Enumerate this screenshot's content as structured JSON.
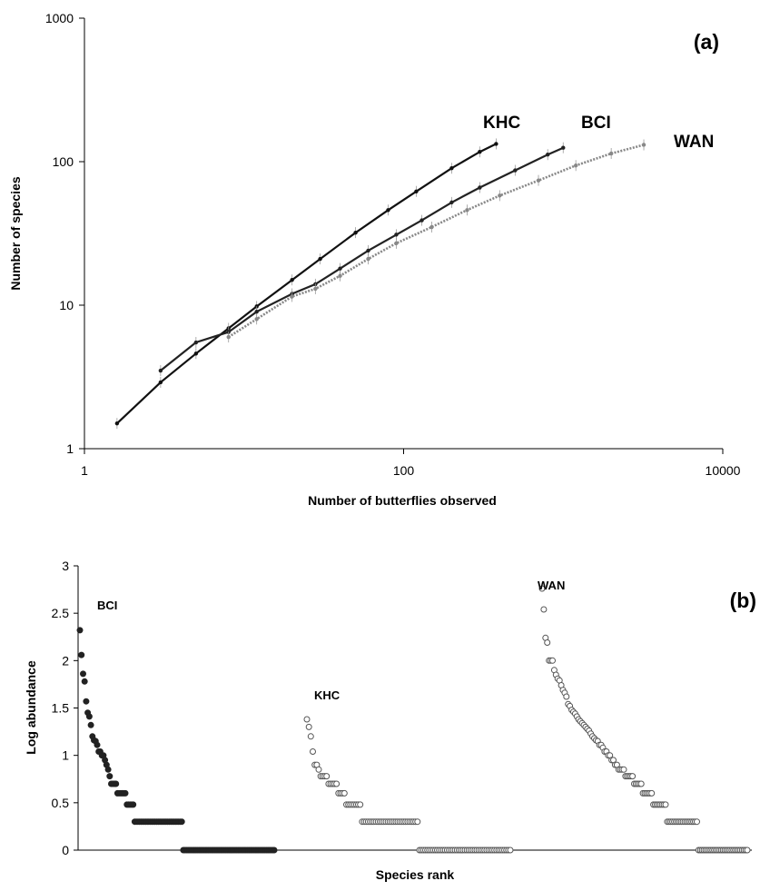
{
  "chart_data": [
    {
      "type": "line",
      "panel_label": "(a)",
      "xlabel": "Number of butterflies observed",
      "ylabel": "Number of species",
      "xscale": "log",
      "yscale": "log",
      "xlim": [
        1,
        10000
      ],
      "ylim": [
        1,
        1000
      ],
      "x_ticks": [
        "1",
        "100",
        "10000"
      ],
      "y_ticks": [
        "1",
        "10",
        "100",
        "1000"
      ],
      "grid": false,
      "series": [
        {
          "name": "KHC",
          "color": "#111111",
          "x": [
            1.6,
            3,
            5,
            8,
            12,
            20,
            30,
            50,
            80,
            120,
            200,
            300,
            380
          ],
          "y": [
            1.5,
            2.9,
            4.6,
            6.9,
            9.8,
            15,
            21,
            32,
            46,
            62,
            90,
            117,
            133
          ]
        },
        {
          "name": "BCI",
          "color": "#222222",
          "x": [
            3,
            5,
            8,
            12,
            20,
            28,
            40,
            60,
            90,
            130,
            200,
            300,
            500,
            800,
            1000
          ],
          "y": [
            3.5,
            5.5,
            6.5,
            9,
            12,
            14,
            18,
            24,
            31,
            39,
            52,
            66,
            87,
            112,
            125
          ]
        },
        {
          "name": "WAN",
          "color": "#888888",
          "x": [
            8,
            12,
            20,
            28,
            40,
            60,
            90,
            150,
            250,
            400,
            700,
            1200,
            2000,
            3200
          ],
          "y": [
            6,
            8,
            11.5,
            13,
            16,
            21,
            27,
            35,
            46,
            58,
            74,
            94,
            114,
            131
          ]
        }
      ],
      "series_labels": [
        "KHC",
        "BCI",
        "WAN"
      ]
    },
    {
      "type": "scatter",
      "panel_label": "(b)",
      "xlabel": "Species rank",
      "ylabel": "Log abundance",
      "ylim": [
        0,
        3
      ],
      "y_ticks": [
        "0",
        "0.5",
        "1",
        "1.5",
        "2",
        "2.5",
        "3"
      ],
      "grid": false,
      "series": [
        {
          "name": "BCI",
          "marker": "filled",
          "values": [
            2.32,
            2.06,
            1.86,
            1.78,
            1.57,
            1.45,
            1.41,
            1.32,
            1.2,
            1.16,
            1.15,
            1.11,
            1.04,
            1.04,
            1.0,
            1.0,
            0.95,
            0.9,
            0.85,
            0.78,
            0.7,
            0.7,
            0.7,
            0.7,
            0.6,
            0.6,
            0.6,
            0.6,
            0.6,
            0.6,
            0.48,
            0.48,
            0.48,
            0.48,
            0.48,
            0.3,
            0.3,
            0.3,
            0.3,
            0.3,
            0.3,
            0.3,
            0.3,
            0.3,
            0.3,
            0.3,
            0.3,
            0.3,
            0.3,
            0.3,
            0.3,
            0.3,
            0.3,
            0.3,
            0.3,
            0.3,
            0.3,
            0.3,
            0.3,
            0.3,
            0.3,
            0.3,
            0.3,
            0.3,
            0.3,
            0.3,
            0,
            0,
            0,
            0,
            0,
            0,
            0,
            0,
            0,
            0,
            0,
            0,
            0,
            0,
            0,
            0,
            0,
            0,
            0,
            0,
            0,
            0,
            0,
            0,
            0,
            0,
            0,
            0,
            0,
            0,
            0,
            0,
            0,
            0,
            0,
            0,
            0,
            0,
            0,
            0,
            0,
            0,
            0,
            0,
            0,
            0,
            0,
            0,
            0,
            0,
            0,
            0,
            0,
            0,
            0,
            0,
            0,
            0,
            0
          ]
        },
        {
          "name": "KHC",
          "marker": "open",
          "values": [
            1.38,
            1.3,
            1.2,
            1.04,
            0.9,
            0.9,
            0.85,
            0.78,
            0.78,
            0.78,
            0.78,
            0.7,
            0.7,
            0.7,
            0.7,
            0.7,
            0.6,
            0.6,
            0.6,
            0.6,
            0.48,
            0.48,
            0.48,
            0.48,
            0.48,
            0.48,
            0.48,
            0.48,
            0.3,
            0.3,
            0.3,
            0.3,
            0.3,
            0.3,
            0.3,
            0.3,
            0.3,
            0.3,
            0.3,
            0.3,
            0.3,
            0.3,
            0.3,
            0.3,
            0.3,
            0.3,
            0.3,
            0.3,
            0.3,
            0.3,
            0.3,
            0.3,
            0.3,
            0.3,
            0.3,
            0.3,
            0.3,
            0,
            0,
            0,
            0,
            0,
            0,
            0,
            0,
            0,
            0,
            0,
            0,
            0,
            0,
            0,
            0,
            0,
            0,
            0,
            0,
            0,
            0,
            0,
            0,
            0,
            0,
            0,
            0,
            0,
            0,
            0,
            0,
            0,
            0,
            0,
            0,
            0,
            0,
            0,
            0,
            0,
            0,
            0,
            0,
            0,
            0,
            0
          ]
        },
        {
          "name": "WAN",
          "marker": "open",
          "values": [
            2.76,
            2.54,
            2.24,
            2.19,
            2.0,
            2.0,
            2.0,
            1.9,
            1.85,
            1.81,
            1.79,
            1.74,
            1.69,
            1.66,
            1.62,
            1.54,
            1.52,
            1.48,
            1.46,
            1.44,
            1.41,
            1.38,
            1.36,
            1.34,
            1.32,
            1.3,
            1.28,
            1.26,
            1.23,
            1.2,
            1.18,
            1.16,
            1.15,
            1.11,
            1.11,
            1.08,
            1.04,
            1.04,
            1.0,
            1.0,
            0.95,
            0.95,
            0.9,
            0.9,
            0.85,
            0.85,
            0.85,
            0.85,
            0.78,
            0.78,
            0.78,
            0.78,
            0.78,
            0.7,
            0.7,
            0.7,
            0.7,
            0.7,
            0.6,
            0.6,
            0.6,
            0.6,
            0.6,
            0.6,
            0.48,
            0.48,
            0.48,
            0.48,
            0.48,
            0.48,
            0.48,
            0.48,
            0.3,
            0.3,
            0.3,
            0.3,
            0.3,
            0.3,
            0.3,
            0.3,
            0.3,
            0.3,
            0.3,
            0.3,
            0.3,
            0.3,
            0.3,
            0.3,
            0.3,
            0.3,
            0,
            0,
            0,
            0,
            0,
            0,
            0,
            0,
            0,
            0,
            0,
            0,
            0,
            0,
            0,
            0,
            0,
            0,
            0,
            0,
            0,
            0,
            0,
            0,
            0,
            0,
            0,
            0,
            0
          ]
        }
      ]
    }
  ]
}
